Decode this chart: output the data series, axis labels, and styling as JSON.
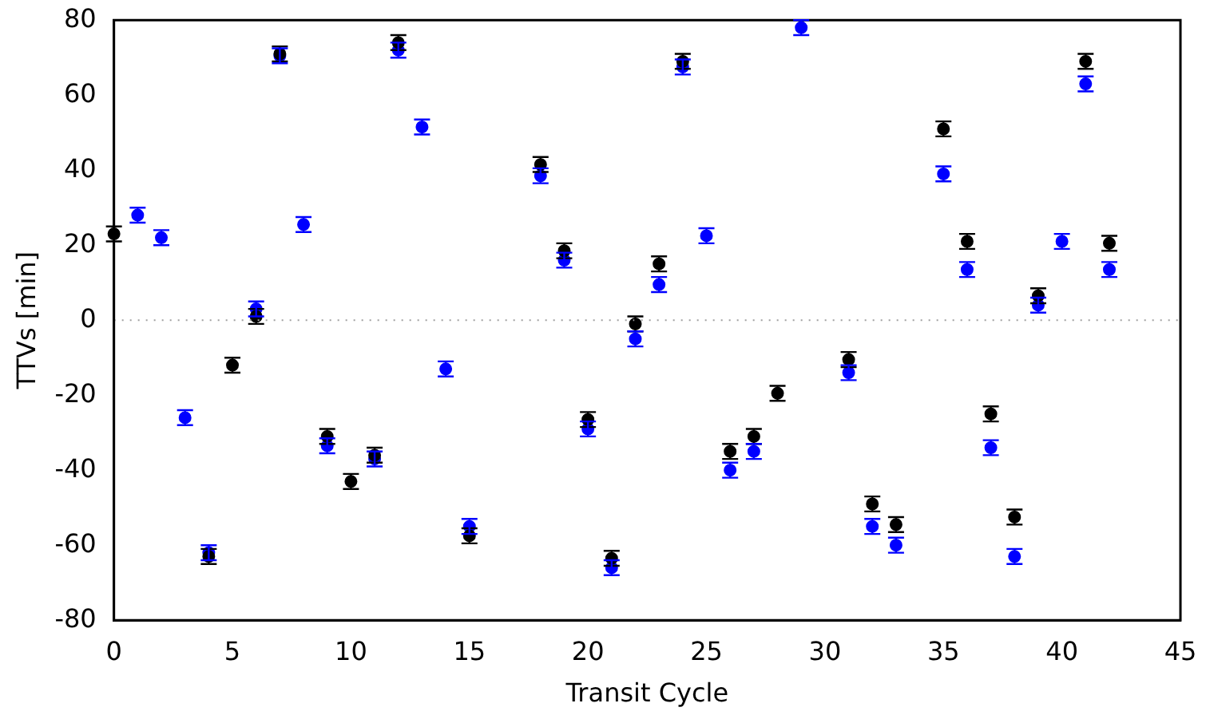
{
  "chart_data": {
    "type": "scatter",
    "xlabel": "Transit Cycle",
    "ylabel": "TTVs [min]",
    "xlim": [
      0,
      45
    ],
    "xticks": [
      0,
      5,
      10,
      15,
      20,
      25,
      30,
      35,
      40,
      45
    ],
    "ylim": [
      -80,
      80
    ],
    "yticks": [
      -80,
      -60,
      -40,
      -20,
      0,
      20,
      40,
      60,
      80
    ],
    "grid": false,
    "legend": false,
    "marker": "circle",
    "ref_lines": [
      {
        "axis": "y",
        "value": 0,
        "label": null,
        "color": "#a0a0a0",
        "line_style": "dotted"
      }
    ],
    "series": [
      {
        "color": "#000000",
        "x": [
          0,
          4,
          5,
          6,
          7,
          9,
          10,
          11,
          12,
          15,
          18,
          19,
          20,
          21,
          22,
          23,
          24,
          26,
          27,
          28,
          31,
          32,
          33,
          35,
          36,
          37,
          38,
          39,
          41,
          42
        ],
        "values": [
          23,
          -63,
          -12,
          1,
          71,
          -31,
          -43,
          -36,
          74,
          -57.5,
          41.5,
          18.5,
          -26.5,
          -63.5,
          -1,
          15,
          69,
          -35,
          -31,
          -19.5,
          -10.5,
          -49,
          -54.5,
          51,
          21,
          -25,
          -52.5,
          6.5,
          69,
          20.5
        ],
        "errors": [
          2,
          2,
          2,
          2,
          2,
          2,
          2,
          2,
          2,
          2,
          2,
          2,
          2,
          2,
          2,
          2,
          2,
          2,
          2,
          2,
          2,
          2,
          2,
          2,
          2,
          2,
          2,
          2,
          2,
          2
        ]
      },
      {
        "color": "#0000ff",
        "x": [
          1,
          2,
          3,
          4,
          6,
          7,
          8,
          9,
          11,
          12,
          13,
          14,
          15,
          18,
          19,
          20,
          21,
          22,
          23,
          24,
          25,
          26,
          27,
          29,
          31,
          32,
          33,
          35,
          36,
          37,
          38,
          39,
          40,
          41,
          42
        ],
        "values": [
          28,
          22,
          -26,
          -62,
          3,
          70.5,
          25.5,
          -33.5,
          -37,
          72,
          51.5,
          -13,
          -55,
          38.5,
          16,
          -29,
          -66,
          -5,
          9.5,
          67.5,
          22.5,
          -40,
          -35,
          78,
          -14,
          -55,
          -60,
          39,
          13.5,
          -34,
          -63,
          4,
          21,
          63,
          13.5
        ],
        "errors": [
          2,
          2,
          2,
          2,
          2,
          2,
          2,
          2,
          2,
          2,
          2,
          2,
          2,
          2,
          2,
          2,
          2,
          2,
          2,
          2,
          2,
          2,
          2,
          2,
          2,
          2,
          2,
          2,
          2,
          2,
          2,
          2,
          2,
          2,
          2
        ]
      }
    ]
  }
}
